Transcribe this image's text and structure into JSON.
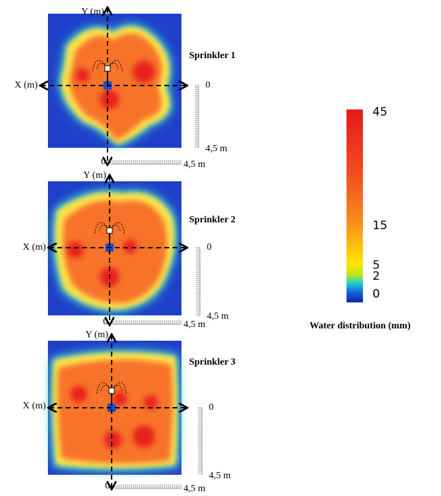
{
  "panels": [
    {
      "title": "Sprinkler 1",
      "x_axis_label": "X (m)",
      "y_axis_label": "Y (m)",
      "vertical_scale_start": "0",
      "vertical_scale_end": "4,5 m",
      "horizontal_scale_start": "0",
      "horizontal_scale_end": "4,5 m"
    },
    {
      "title": "Sprinkler 2",
      "x_axis_label": "X (m)",
      "y_axis_label": "Y (m)",
      "vertical_scale_start": "0",
      "vertical_scale_end": "4,5 m",
      "horizontal_scale_start": "0",
      "horizontal_scale_end": "4,5 m"
    },
    {
      "title": "Sprinkler 3",
      "x_axis_label": "X (m)",
      "y_axis_label": "Y (m)",
      "vertical_scale_start": "0",
      "vertical_scale_end": "4,5 m",
      "horizontal_scale_start": "0",
      "horizontal_scale_end": "4,5 m"
    }
  ],
  "colorbar": {
    "ticks": [
      45,
      15,
      5,
      2,
      0
    ],
    "label": "Water distribution (mm)"
  }
}
